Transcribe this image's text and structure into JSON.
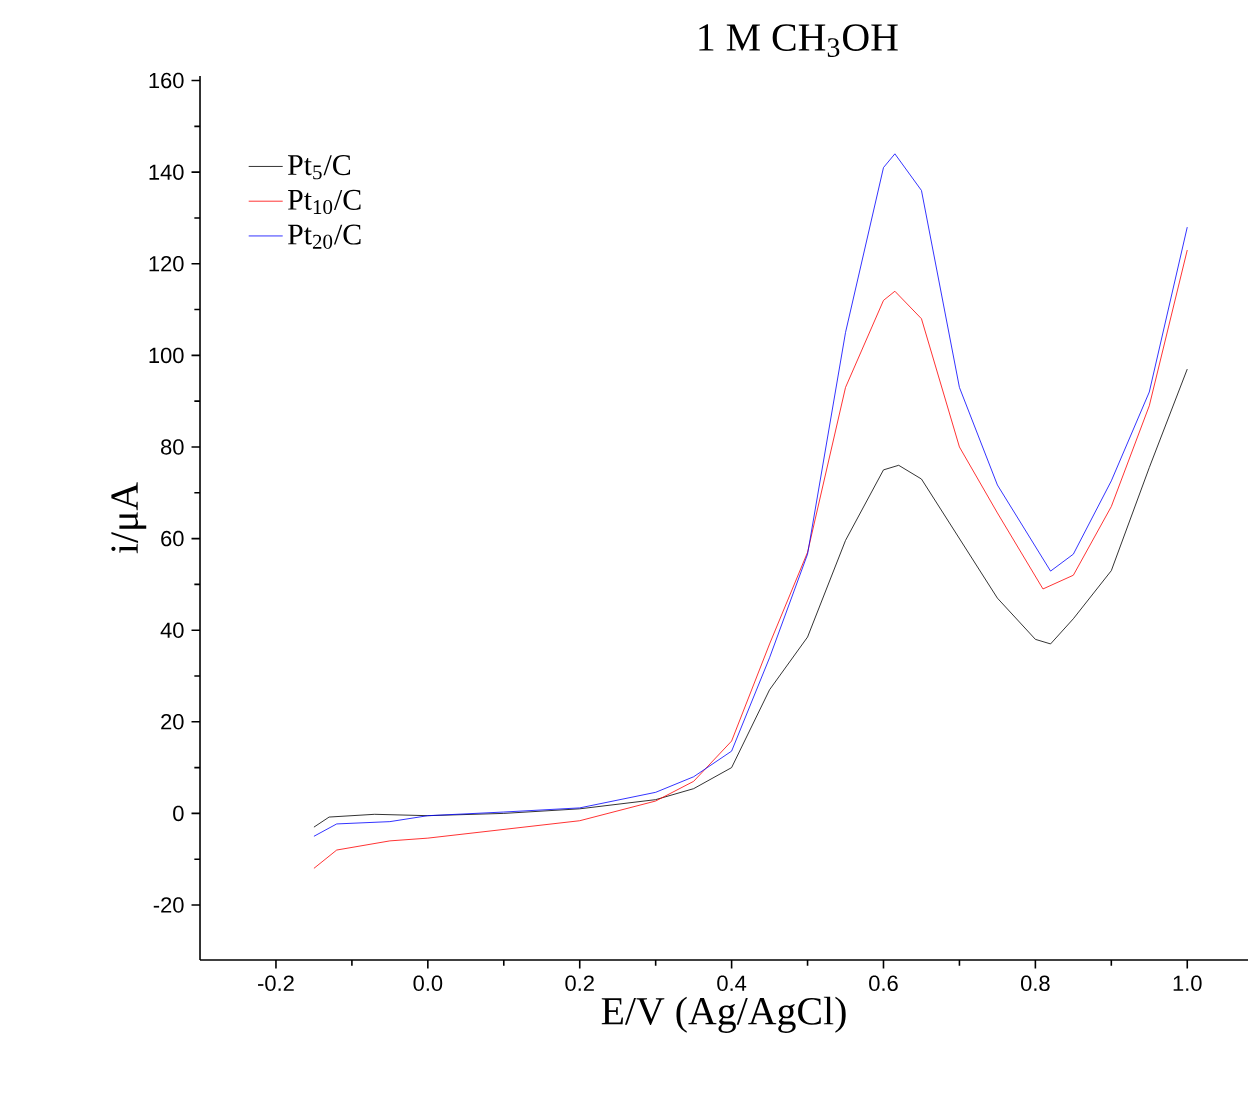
{
  "chart_data": {
    "type": "line",
    "title": "1 M CH$_{3}$OH",
    "xlabel": "E/V (Ag/AgCl)",
    "ylabel": "i/μA",
    "xlim": [
      -0.3,
      1.08
    ],
    "ylim": [
      -32,
      161
    ],
    "xticks": [
      {
        "value": -0.2,
        "label": "-0.2"
      },
      {
        "value": 0,
        "label": "0.0"
      },
      {
        "value": 0.2,
        "label": "0.2"
      },
      {
        "value": 0.4,
        "label": "0.4"
      },
      {
        "value": 0.6,
        "label": "0.6"
      },
      {
        "value": 0.8,
        "label": "0.8"
      },
      {
        "value": 1.0,
        "label": "1.0"
      }
    ],
    "yticks": [
      -20,
      0,
      20,
      40,
      60,
      80,
      100,
      120,
      140,
      160
    ],
    "grid": false,
    "legend": "top left",
    "line_style": "solid",
    "marker": "none",
    "series": [
      {
        "name": "Pt$_{5}$/C",
        "color": "#000000",
        "x": [
          -0.15,
          -0.13,
          -0.07,
          0,
          0.1,
          0.2,
          0.3,
          0.35,
          0.4,
          0.45,
          0.5,
          0.55,
          0.6,
          0.62,
          0.65,
          0.7,
          0.75,
          0.8,
          0.82,
          0.85,
          0.9,
          0.95,
          1.0
        ],
        "values": [
          -3,
          -0.8,
          -0.2,
          -0.5,
          0,
          1,
          3,
          5.4,
          10,
          27,
          38.5,
          59.6,
          75,
          76,
          73,
          60,
          47,
          38,
          37,
          42.5,
          53,
          75.5,
          97
        ]
      },
      {
        "name": "Pt$_{10}$/C",
        "color": "#ff0000",
        "x": [
          -0.15,
          -0.12,
          -0.05,
          0,
          0.1,
          0.2,
          0.3,
          0.35,
          0.4,
          0.45,
          0.5,
          0.55,
          0.6,
          0.615,
          0.65,
          0.7,
          0.75,
          0.81,
          0.85,
          0.9,
          0.95,
          1.0
        ],
        "values": [
          -12,
          -8,
          -6,
          -5.4,
          -3.5,
          -1.6,
          2.7,
          7,
          15.8,
          37,
          57,
          93,
          112,
          114,
          108,
          80,
          65.6,
          49,
          52,
          67,
          89,
          123
        ]
      },
      {
        "name": "Pt$_{20}$/C",
        "color": "#0000ff",
        "x": [
          -0.15,
          -0.12,
          -0.05,
          0,
          0.1,
          0.2,
          0.3,
          0.35,
          0.4,
          0.45,
          0.5,
          0.55,
          0.6,
          0.615,
          0.65,
          0.7,
          0.75,
          0.82,
          0.85,
          0.9,
          0.95,
          1.0
        ],
        "values": [
          -5,
          -2.3,
          -1.8,
          -0.5,
          0.3,
          1.2,
          4.6,
          8,
          13.6,
          34,
          56.6,
          105,
          141,
          144,
          136,
          93,
          71.7,
          52.9,
          56.6,
          72.6,
          92,
          128
        ]
      }
    ]
  }
}
